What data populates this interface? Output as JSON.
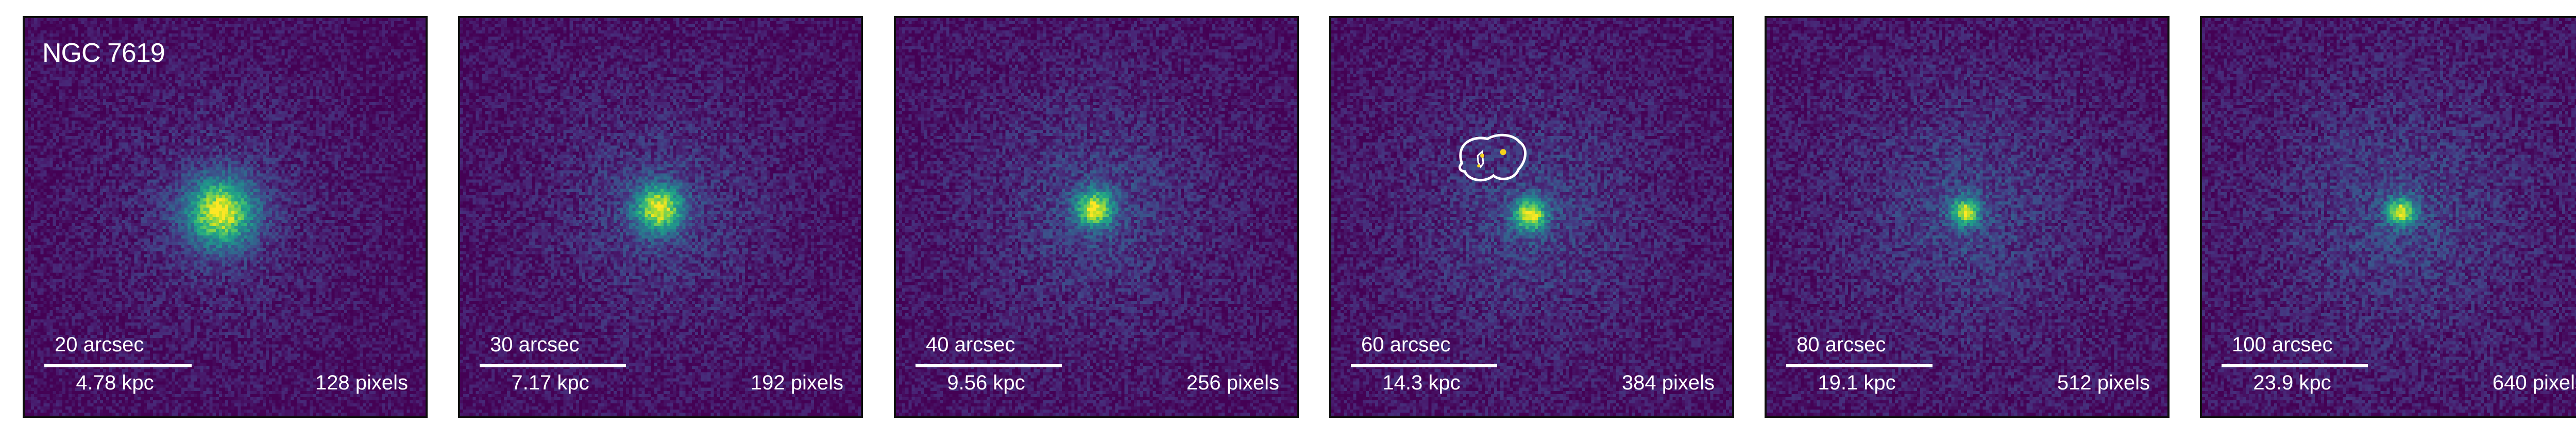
{
  "figure": {
    "object_name": "NGC 7619",
    "colormap": "viridis",
    "panels": [
      {
        "arcsec_label": "20 arcsec",
        "kpc_label": "4.78 kpc",
        "pixels_label": "128 pixels",
        "has_contour": false
      },
      {
        "arcsec_label": "30 arcsec",
        "kpc_label": "7.17 kpc",
        "pixels_label": "192 pixels",
        "has_contour": false
      },
      {
        "arcsec_label": "40 arcsec",
        "kpc_label": "9.56 kpc",
        "pixels_label": "256 pixels",
        "has_contour": false
      },
      {
        "arcsec_label": "60 arcsec",
        "kpc_label": "14.3 kpc",
        "pixels_label": "384 pixels",
        "has_contour": true
      },
      {
        "arcsec_label": "80 arcsec",
        "kpc_label": "19.1 kpc",
        "pixels_label": "512 pixels",
        "has_contour": false
      },
      {
        "arcsec_label": "100 arcsec",
        "kpc_label": "23.9 kpc",
        "pixels_label": "640 pixels",
        "has_contour": false
      }
    ],
    "colors": {
      "background": "#3b0e56",
      "text": "#ffffff",
      "frame": "#0f0f0f",
      "contour": "#ffffff",
      "marker": "#f5d21a"
    }
  }
}
